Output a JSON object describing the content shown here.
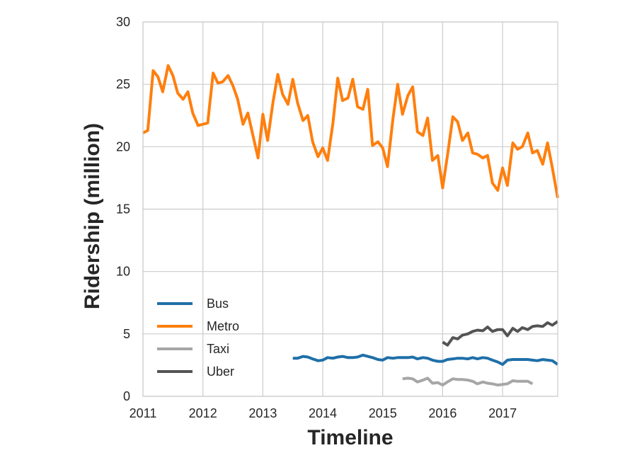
{
  "chart_data": {
    "type": "line",
    "title": "",
    "xlabel": "Timeline",
    "ylabel": "Ridership (million)",
    "xlim": [
      2011.0,
      2017.92
    ],
    "ylim": [
      0,
      30
    ],
    "x_ticks": [
      2011,
      2012,
      2013,
      2014,
      2015,
      2016,
      2017
    ],
    "y_ticks": [
      0,
      5,
      10,
      15,
      20,
      25,
      30
    ],
    "grid": true,
    "legend_position": "lower-left",
    "x_unit": "year (decimal)",
    "series": [
      {
        "name": "Bus",
        "color": "#1f6fa8",
        "x": [
          2013.5,
          2013.58,
          2013.67,
          2013.75,
          2013.83,
          2013.92,
          2014.0,
          2014.08,
          2014.17,
          2014.25,
          2014.33,
          2014.42,
          2014.5,
          2014.58,
          2014.67,
          2014.75,
          2014.83,
          2014.92,
          2015.0,
          2015.08,
          2015.17,
          2015.25,
          2015.33,
          2015.42,
          2015.5,
          2015.58,
          2015.67,
          2015.75,
          2015.83,
          2015.92,
          2016.0,
          2016.08,
          2016.17,
          2016.25,
          2016.33,
          2016.42,
          2016.5,
          2016.58,
          2016.67,
          2016.75,
          2016.83,
          2016.92,
          2017.0,
          2017.08,
          2017.17,
          2017.25,
          2017.33,
          2017.42,
          2017.5,
          2017.58,
          2017.67,
          2017.75,
          2017.83,
          2017.92
        ],
        "values": [
          3.05,
          3.05,
          3.2,
          3.15,
          3.0,
          2.85,
          2.9,
          3.1,
          3.05,
          3.15,
          3.2,
          3.1,
          3.1,
          3.15,
          3.3,
          3.2,
          3.1,
          2.95,
          2.9,
          3.1,
          3.05,
          3.1,
          3.1,
          3.1,
          3.15,
          3.0,
          3.1,
          3.05,
          2.9,
          2.8,
          2.8,
          2.95,
          3.0,
          3.05,
          3.05,
          3.0,
          3.1,
          3.0,
          3.1,
          3.05,
          2.9,
          2.75,
          2.55,
          2.9,
          2.95,
          2.95,
          2.95,
          2.95,
          2.9,
          2.85,
          2.95,
          2.9,
          2.85,
          2.55
        ]
      },
      {
        "name": "Metro",
        "color": "#ff7f0e",
        "x": [
          2011.0,
          2011.08,
          2011.17,
          2011.25,
          2011.33,
          2011.42,
          2011.5,
          2011.58,
          2011.67,
          2011.75,
          2011.83,
          2011.92,
          2012.0,
          2012.08,
          2012.17,
          2012.25,
          2012.33,
          2012.42,
          2012.5,
          2012.58,
          2012.67,
          2012.75,
          2012.83,
          2012.92,
          2013.0,
          2013.08,
          2013.17,
          2013.25,
          2013.33,
          2013.42,
          2013.5,
          2013.58,
          2013.67,
          2013.75,
          2013.83,
          2013.92,
          2014.0,
          2014.08,
          2014.17,
          2014.25,
          2014.33,
          2014.42,
          2014.5,
          2014.58,
          2014.67,
          2014.75,
          2014.83,
          2014.92,
          2015.0,
          2015.08,
          2015.17,
          2015.25,
          2015.33,
          2015.42,
          2015.5,
          2015.58,
          2015.67,
          2015.75,
          2015.83,
          2015.92,
          2016.0,
          2016.08,
          2016.17,
          2016.25,
          2016.33,
          2016.42,
          2016.5,
          2016.58,
          2016.67,
          2016.75,
          2016.83,
          2016.92,
          2017.0,
          2017.08,
          2017.17,
          2017.25,
          2017.33,
          2017.42,
          2017.5,
          2017.58,
          2017.67,
          2017.75,
          2017.83,
          2017.92
        ],
        "values": [
          21.1,
          21.3,
          26.1,
          25.6,
          24.4,
          26.5,
          25.7,
          24.3,
          23.8,
          24.4,
          22.7,
          21.7,
          21.8,
          21.9,
          25.9,
          25.1,
          25.2,
          25.7,
          24.9,
          23.8,
          21.8,
          22.7,
          21.0,
          19.1,
          22.6,
          20.5,
          23.6,
          25.8,
          24.2,
          23.4,
          25.4,
          23.5,
          22.1,
          22.5,
          20.4,
          19.2,
          19.9,
          18.9,
          21.9,
          25.5,
          23.7,
          23.9,
          25.4,
          23.2,
          23.0,
          24.6,
          20.1,
          20.4,
          19.9,
          18.4,
          22.2,
          25.0,
          22.6,
          24.1,
          24.8,
          21.2,
          20.9,
          22.3,
          18.9,
          19.3,
          16.7,
          19.3,
          22.4,
          22.0,
          20.5,
          21.1,
          19.5,
          19.4,
          19.1,
          19.3,
          17.1,
          16.5,
          18.3,
          16.9,
          20.3,
          19.8,
          20.0,
          21.1,
          19.5,
          19.7,
          18.6,
          20.3,
          18.3,
          15.9
        ]
      },
      {
        "name": "Taxi",
        "color": "#a6a6a6",
        "x": [
          2015.33,
          2015.42,
          2015.5,
          2015.58,
          2015.67,
          2015.75,
          2015.83,
          2015.92,
          2016.0,
          2016.08,
          2016.17,
          2016.25,
          2016.33,
          2016.42,
          2016.5,
          2016.58,
          2016.67,
          2016.75,
          2016.83,
          2016.92,
          2017.0,
          2017.08,
          2017.17,
          2017.25,
          2017.33,
          2017.42,
          2017.5
        ],
        "values": [
          1.4,
          1.45,
          1.4,
          1.15,
          1.3,
          1.45,
          1.05,
          1.1,
          0.9,
          1.15,
          1.4,
          1.35,
          1.35,
          1.3,
          1.2,
          1.0,
          1.15,
          1.05,
          1.0,
          0.9,
          0.95,
          1.0,
          1.25,
          1.2,
          1.2,
          1.2,
          1.0
        ]
      },
      {
        "name": "Uber",
        "color": "#545454",
        "x": [
          2016.0,
          2016.08,
          2016.17,
          2016.25,
          2016.33,
          2016.42,
          2016.5,
          2016.58,
          2016.67,
          2016.75,
          2016.83,
          2016.92,
          2017.0,
          2017.08,
          2017.17,
          2017.25,
          2017.33,
          2017.42,
          2017.5,
          2017.58,
          2017.67,
          2017.75,
          2017.83,
          2017.92
        ],
        "values": [
          4.35,
          4.1,
          4.7,
          4.6,
          4.9,
          5.0,
          5.2,
          5.3,
          5.25,
          5.55,
          5.2,
          5.35,
          5.35,
          4.85,
          5.45,
          5.2,
          5.5,
          5.35,
          5.6,
          5.65,
          5.6,
          5.9,
          5.7,
          6.0
        ]
      }
    ]
  }
}
